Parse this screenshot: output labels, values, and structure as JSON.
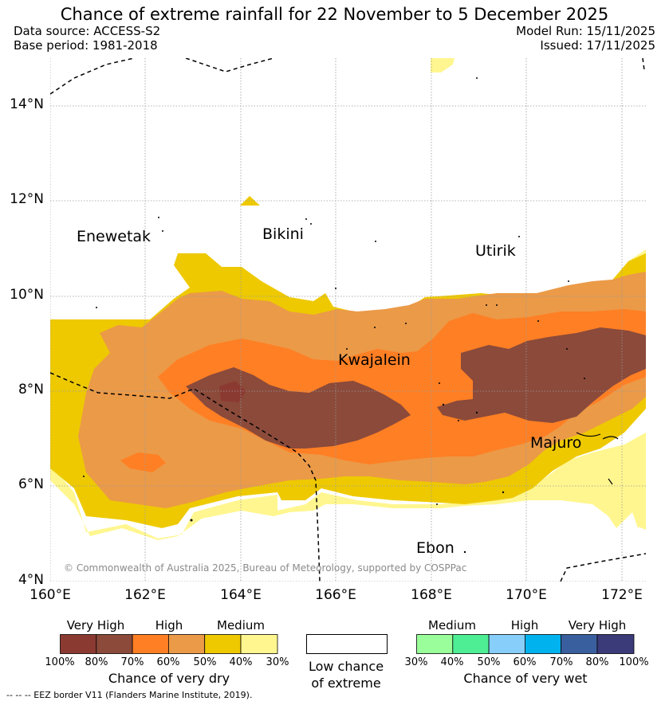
{
  "title": "Chance of extreme rainfall for 22 November to 5 December 2025",
  "header": {
    "data_source": "Data source: ACCESS-S2",
    "base_period": "Base period: 1981-2018",
    "model_run": "Model Run: 15/11/2025",
    "issued": "Issued: 17/11/2025"
  },
  "map": {
    "y_ticks": [
      "14°N",
      "12°N",
      "10°N",
      "8°N",
      "6°N",
      "4°N"
    ],
    "x_ticks": [
      "160°E",
      "162°E",
      "164°E",
      "166°E",
      "168°E",
      "170°E",
      "172°E"
    ],
    "places": {
      "enewetak": "Enewetak",
      "bikini": "Bikini",
      "utirik": "Utirik",
      "kwajalein": "Kwajalein",
      "majuro": "Majuro",
      "ebon": "Ebon"
    },
    "copyright": "© Commonwealth of Australia 2025, Bureau of Meteorology, supported by COSPPac",
    "colors": {
      "dry_100_80": "#8b3a32",
      "dry_80_70": "#8b4a3a",
      "dry_70_60": "#ff7f24",
      "dry_60_50": "#eb9a48",
      "dry_50_40": "#eec900",
      "dry_40_30": "#fff68f",
      "wet_30_40": "#9aff9a",
      "wet_40_50": "#4eee94",
      "wet_50_60": "#87cefa",
      "wet_60_70": "#00b2ee",
      "wet_70_80": "#3a5f9e",
      "wet_80_100": "#3b3b7a"
    }
  },
  "legend": {
    "dry": {
      "labels": [
        "Very High",
        "High",
        "Medium"
      ],
      "ticks": [
        "100%",
        "80%",
        "70%",
        "60%",
        "50%",
        "40%",
        "30%"
      ],
      "title": "Chance of very dry"
    },
    "low": {
      "line1": "Low chance",
      "line2": "of extreme"
    },
    "wet": {
      "labels": [
        "Medium",
        "High",
        "Very High"
      ],
      "ticks": [
        "30%",
        "40%",
        "50%",
        "60%",
        "70%",
        "80%",
        "100%"
      ],
      "title": "Chance of very wet"
    }
  },
  "footnote": "--  --  -- EEZ border V11 (Flanders Marine Institute, 2019)."
}
